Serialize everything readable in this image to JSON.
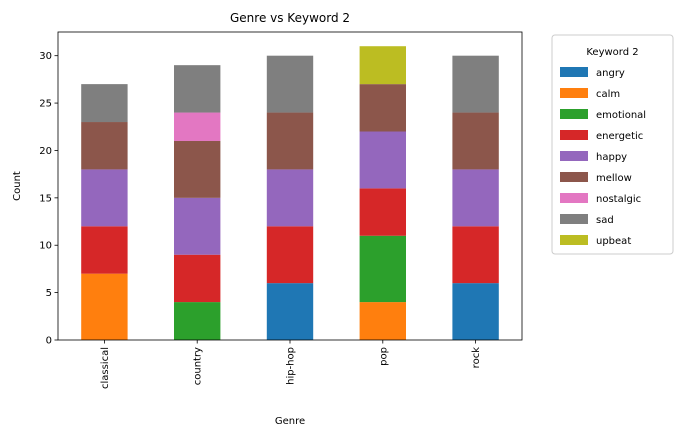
{
  "chart_data": {
    "type": "bar",
    "stacked": true,
    "title": "Genre vs Keyword 2",
    "xlabel": "Genre",
    "ylabel": "Count",
    "ylim": [
      0,
      32.5
    ],
    "yticks": [
      0,
      5,
      10,
      15,
      20,
      25,
      30
    ],
    "categories": [
      "classical",
      "country",
      "hip-hop",
      "pop",
      "rock"
    ],
    "series": [
      {
        "name": "angry",
        "color": "#1f77b4",
        "values": [
          0,
          0,
          6,
          0,
          6
        ]
      },
      {
        "name": "calm",
        "color": "#ff7f0e",
        "values": [
          7,
          0,
          0,
          4,
          0
        ]
      },
      {
        "name": "emotional",
        "color": "#2ca02c",
        "values": [
          0,
          4,
          0,
          7,
          0
        ]
      },
      {
        "name": "energetic",
        "color": "#d62728",
        "values": [
          5,
          5,
          6,
          5,
          6
        ]
      },
      {
        "name": "happy",
        "color": "#9467bd",
        "values": [
          6,
          6,
          6,
          6,
          6
        ]
      },
      {
        "name": "mellow",
        "color": "#8c564b",
        "values": [
          5,
          6,
          6,
          5,
          6
        ]
      },
      {
        "name": "nostalgic",
        "color": "#e377c2",
        "values": [
          0,
          3,
          0,
          0,
          0
        ]
      },
      {
        "name": "sad",
        "color": "#7f7f7f",
        "values": [
          4,
          5,
          6,
          0,
          6
        ]
      },
      {
        "name": "upbeat",
        "color": "#bcbd22",
        "values": [
          0,
          0,
          0,
          4,
          0
        ]
      }
    ],
    "legend": {
      "title": "Keyword 2",
      "placement": "outside-right-top"
    },
    "grid": false
  }
}
